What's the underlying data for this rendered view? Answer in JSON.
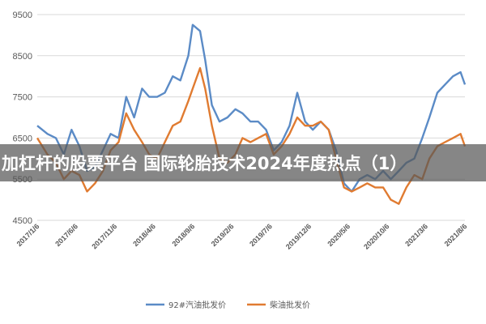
{
  "overlay": {
    "title": "加杠杆的股票平台 国际轮胎技术2024年度热点（1）"
  },
  "colors": {
    "series_92": "#5b8bc6",
    "series_diesel": "#e07b31",
    "grid": "#d9d9d9",
    "axis_text": "#595959"
  },
  "chart_data": {
    "type": "line",
    "title": "",
    "xlabel": "",
    "ylabel": "",
    "ylim": [
      4500,
      9500
    ],
    "yticks": [
      4500,
      5500,
      6500,
      7500,
      8500,
      9500
    ],
    "xlim": [
      "2017-01-06",
      "2021-08-06"
    ],
    "xticks": [
      "2017/1/6",
      "2017/6/6",
      "2017/11/6",
      "2018/4/6",
      "2018/9/6",
      "2019/2/6",
      "2019/7/6",
      "2019/12/6",
      "2020/5/6",
      "2020/10/6",
      "2021/3/6",
      "2021/8/6"
    ],
    "grid": "horizontal",
    "legend_position": "bottom",
    "series": [
      {
        "name": "92#汽油批发价",
        "color": "#5b8bc6",
        "x": [
          "2017-01-06",
          "2017-02-15",
          "2017-03-20",
          "2017-04-20",
          "2017-05-20",
          "2017-06-20",
          "2017-07-20",
          "2017-08-20",
          "2017-09-20",
          "2017-10-20",
          "2017-11-20",
          "2017-12-20",
          "2018-01-20",
          "2018-02-20",
          "2018-03-20",
          "2018-04-20",
          "2018-05-20",
          "2018-06-20",
          "2018-07-20",
          "2018-08-20",
          "2018-09-06",
          "2018-10-05",
          "2018-10-25",
          "2018-11-20",
          "2018-12-20",
          "2019-01-20",
          "2019-02-20",
          "2019-03-20",
          "2019-04-20",
          "2019-05-20",
          "2019-06-20",
          "2019-07-20",
          "2019-08-20",
          "2019-09-20",
          "2019-10-20",
          "2019-11-20",
          "2019-12-20",
          "2020-01-20",
          "2020-02-20",
          "2020-03-20",
          "2020-04-20",
          "2020-05-20",
          "2020-06-20",
          "2020-07-20",
          "2020-08-20",
          "2020-09-20",
          "2020-10-20",
          "2020-11-20",
          "2020-12-20",
          "2021-01-20",
          "2021-02-20",
          "2021-03-20",
          "2021-04-20",
          "2021-05-20",
          "2021-06-20",
          "2021-07-20",
          "2021-08-06"
        ],
        "values": [
          6800,
          6600,
          6500,
          6100,
          6700,
          6300,
          5700,
          5800,
          6200,
          6600,
          6500,
          7500,
          7000,
          7700,
          7500,
          7500,
          7600,
          8000,
          7900,
          8500,
          9250,
          9100,
          8400,
          7300,
          6900,
          7000,
          7200,
          7100,
          6900,
          6900,
          6700,
          6200,
          6400,
          6800,
          7600,
          6900,
          6700,
          6900,
          6700,
          6200,
          5400,
          5200,
          5500,
          5600,
          5500,
          5700,
          5500,
          5700,
          5900,
          6000,
          6500,
          7000,
          7600,
          7800,
          8000,
          8100,
          7800
        ]
      },
      {
        "name": "柴油批发价",
        "color": "#e07b31",
        "x": [
          "2017-01-06",
          "2017-02-15",
          "2017-03-20",
          "2017-04-20",
          "2017-05-20",
          "2017-06-20",
          "2017-07-20",
          "2017-08-20",
          "2017-09-20",
          "2017-10-20",
          "2017-11-20",
          "2017-12-20",
          "2018-01-20",
          "2018-02-20",
          "2018-03-20",
          "2018-04-20",
          "2018-05-20",
          "2018-06-20",
          "2018-07-20",
          "2018-08-20",
          "2018-09-06",
          "2018-10-05",
          "2018-10-25",
          "2018-11-20",
          "2018-12-20",
          "2019-01-20",
          "2019-02-20",
          "2019-03-20",
          "2019-04-20",
          "2019-05-20",
          "2019-06-20",
          "2019-07-20",
          "2019-08-20",
          "2019-09-20",
          "2019-10-20",
          "2019-11-20",
          "2019-12-20",
          "2020-01-20",
          "2020-02-20",
          "2020-03-20",
          "2020-04-20",
          "2020-05-20",
          "2020-06-20",
          "2020-07-20",
          "2020-08-20",
          "2020-09-20",
          "2020-10-20",
          "2020-11-20",
          "2020-12-20",
          "2021-01-20",
          "2021-02-20",
          "2021-03-20",
          "2021-04-20",
          "2021-05-20",
          "2021-06-20",
          "2021-07-20",
          "2021-08-06"
        ],
        "values": [
          6500,
          6100,
          5900,
          5500,
          5700,
          5600,
          5200,
          5400,
          5700,
          6200,
          6400,
          7100,
          6700,
          6400,
          6100,
          6000,
          6400,
          6800,
          6900,
          7400,
          7700,
          8200,
          7700,
          6800,
          6000,
          5900,
          6100,
          6500,
          6400,
          6500,
          6600,
          6100,
          6300,
          6600,
          7000,
          6800,
          6800,
          6900,
          6700,
          6000,
          5300,
          5200,
          5300,
          5400,
          5300,
          5300,
          5000,
          4900,
          5300,
          5600,
          5500,
          6000,
          6300,
          6400,
          6500,
          6600,
          6300
        ]
      }
    ]
  },
  "legend": {
    "items": [
      {
        "label": "92#汽油批发价",
        "color": "#5b8bc6"
      },
      {
        "label": "柴油批发价",
        "color": "#e07b31"
      }
    ]
  }
}
